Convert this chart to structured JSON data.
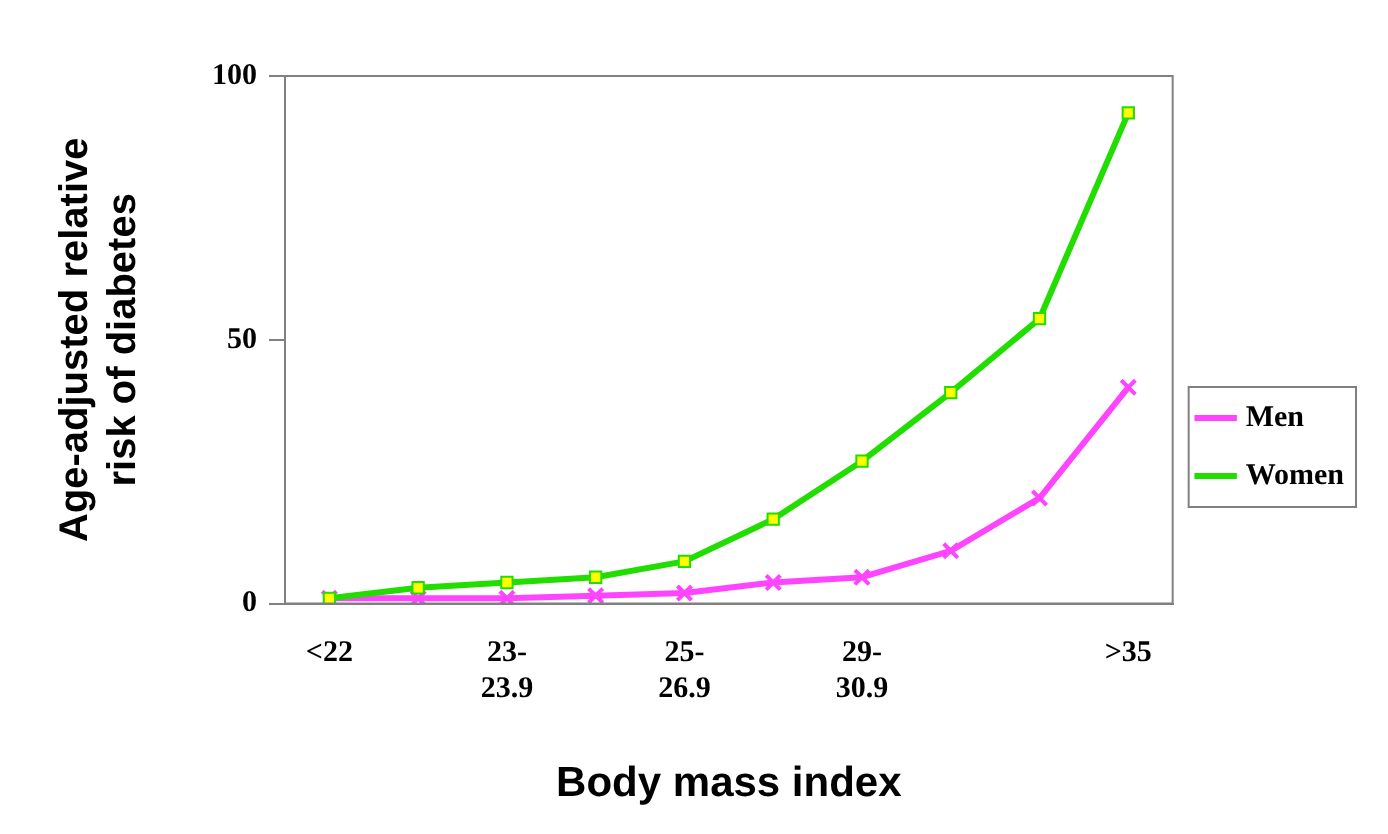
{
  "chart_data": {
    "type": "line",
    "xlabel": "Body mass index",
    "ylabel": "Age-adjusted relative\nrisk of diabetes",
    "categories": [
      "<22",
      null,
      "23-23.9",
      null,
      "25-26.9",
      null,
      "29-30.9",
      null,
      null,
      ">35"
    ],
    "series": [
      {
        "name": "Men",
        "color": "#ff44ff",
        "marker": "cross",
        "values": [
          1,
          1,
          1,
          1.5,
          2,
          4,
          5,
          10,
          20,
          41
        ]
      },
      {
        "name": "Women",
        "color": "#22dd00",
        "marker": "square",
        "values": [
          1,
          3,
          4,
          5,
          8,
          16,
          27,
          40,
          54,
          93
        ]
      }
    ],
    "ylim": [
      0,
      100
    ],
    "yticks": [
      0,
      50,
      100
    ],
    "grid": false,
    "legend": "right"
  }
}
